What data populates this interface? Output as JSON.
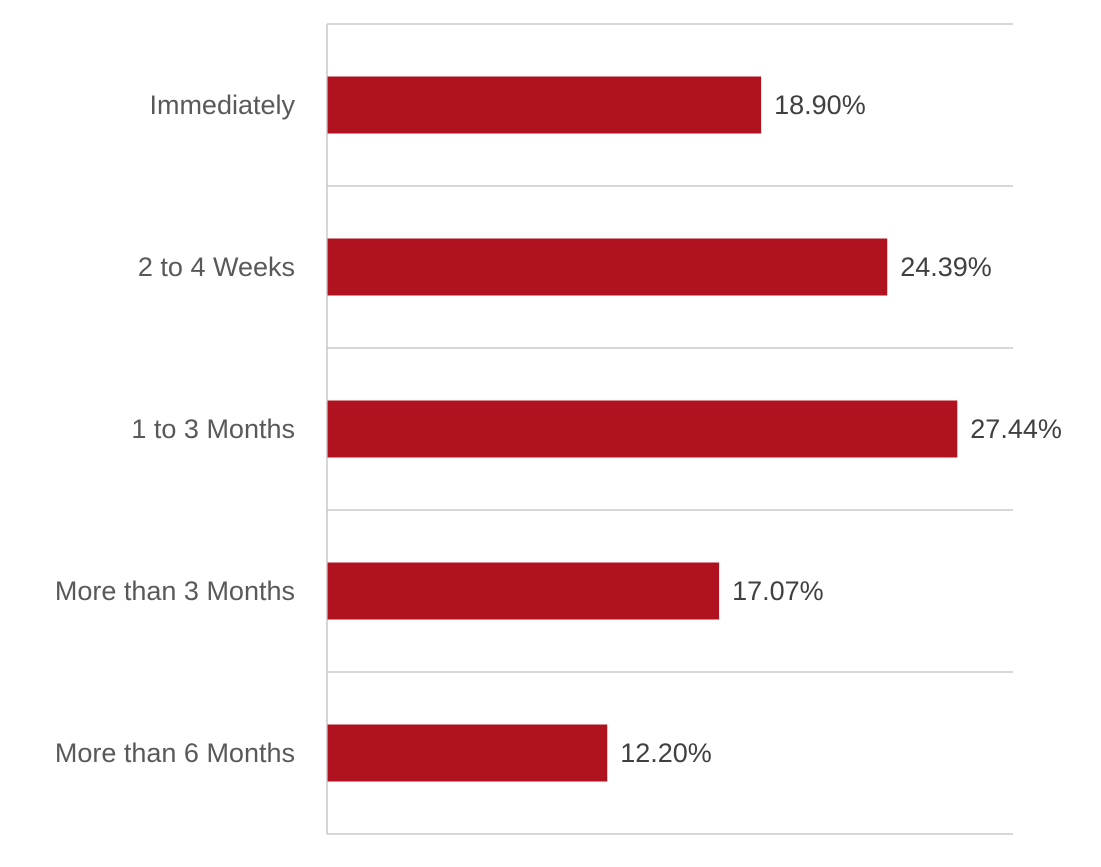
{
  "chart_data": {
    "type": "bar",
    "orientation": "horizontal",
    "categories": [
      "Immediately",
      "2 to 4 Weeks",
      "1 to 3 Months",
      "More than 3 Months",
      "More than 6 Months"
    ],
    "values": [
      18.9,
      24.39,
      27.44,
      17.07,
      12.2
    ],
    "value_labels": [
      "18.90%",
      "24.39%",
      "27.44%",
      "17.07%",
      "12.20%"
    ],
    "title": "",
    "xlabel": "",
    "ylabel": "",
    "xlim": [
      0,
      30
    ],
    "grid": true,
    "legend": "none"
  },
  "colors": {
    "bar": "#b1121f",
    "grid": "#bfbfbf",
    "category_text": "#595959",
    "value_text": "#404040"
  }
}
